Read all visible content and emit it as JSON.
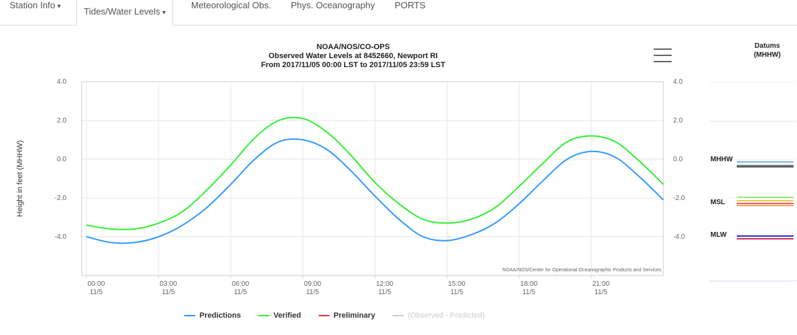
{
  "tabs": [
    {
      "label": "Station Info",
      "caret": true
    },
    {
      "label": "Tides/Water Levels",
      "caret": true,
      "active": true
    },
    {
      "label": "Meteorological Obs.",
      "caret": false
    },
    {
      "label": "Phys. Oceanography",
      "caret": false
    },
    {
      "label": "PORTS",
      "caret": false
    }
  ],
  "menu": {
    "icon": "hamburger-menu-icon"
  },
  "datums": {
    "title_line1": "Datums",
    "title_line2": "(MHHW)",
    "MHHW": {
      "label": "MHHW",
      "colors": [
        "#7cb5ec",
        "#888888",
        "#555555"
      ]
    },
    "MSL": {
      "label": "MSL",
      "colors": [
        "#90ed7d",
        "#f7c744",
        "#f45b5b",
        "#f7a35c"
      ]
    },
    "MLW": {
      "label": "MLW",
      "colors": [
        "#3333cc",
        "#cc3366"
      ]
    }
  },
  "chart_data": {
    "type": "line",
    "title_lines": [
      "NOAA/NOS/CO-OPS",
      "Observed Water Levels at 8452660, Newport RI",
      "From 2017/11/05 00:00 LST to 2017/11/05 23:59 LST"
    ],
    "ylabel": "Height in feet (MHHW)",
    "ylim": [
      -6.0,
      4.0
    ],
    "ytick_labels": [
      "4.0",
      "2.0",
      "0.0",
      "-2.0",
      "-4.0"
    ],
    "yticks": [
      4.0,
      2.0,
      0.0,
      -2.0,
      -4.0
    ],
    "xlim": [
      -0.2,
      24.0
    ],
    "xticks": [
      0,
      3,
      6,
      9,
      12,
      15,
      18,
      21
    ],
    "xtick_labels": [
      [
        "00:00",
        "11/5"
      ],
      [
        "03:00",
        "11/5"
      ],
      [
        "06:00",
        "11/5"
      ],
      [
        "09:00",
        "11/5"
      ],
      [
        "12:00",
        "11/5"
      ],
      [
        "15:00",
        "11/5"
      ],
      [
        "18:00",
        "11/5"
      ],
      [
        "21:00",
        "11/5"
      ]
    ],
    "credits": "NOAA/NOS/Center for Operational Oceanographic Products and Services",
    "grid": true,
    "legend_position": "bottom",
    "series": [
      {
        "name": "Predictions",
        "color": "#3399ff",
        "x": [
          0,
          1,
          2,
          3,
          4,
          5,
          6,
          7,
          8,
          9,
          10,
          11,
          12,
          13,
          14,
          15,
          16,
          17,
          18,
          19,
          20,
          21,
          22,
          23,
          24
        ],
        "y": [
          -4.0,
          -4.3,
          -4.3,
          -4.0,
          -3.4,
          -2.5,
          -1.3,
          0.0,
          0.9,
          1.0,
          0.5,
          -0.6,
          -1.9,
          -3.1,
          -4.0,
          -4.2,
          -3.9,
          -3.3,
          -2.3,
          -1.1,
          0.0,
          0.4,
          0.1,
          -0.9,
          -2.1
        ]
      },
      {
        "name": "Verified",
        "color": "#33ee33",
        "x": [
          0,
          1,
          2,
          3,
          4,
          5,
          6,
          7,
          8,
          9,
          10,
          11,
          12,
          13,
          14,
          15,
          16,
          17,
          18,
          19,
          20,
          21,
          22,
          23,
          24
        ],
        "y": [
          -3.4,
          -3.6,
          -3.6,
          -3.3,
          -2.7,
          -1.6,
          -0.3,
          1.1,
          2.0,
          2.1,
          1.4,
          0.2,
          -1.2,
          -2.3,
          -3.1,
          -3.3,
          -3.1,
          -2.5,
          -1.4,
          -0.2,
          0.9,
          1.2,
          0.9,
          -0.1,
          -1.3
        ]
      },
      {
        "name": "Preliminary",
        "color": "#ff3333",
        "x": [],
        "y": []
      },
      {
        "name": "(Observed - Predicted)",
        "color": "#cccccc",
        "x": [],
        "y": []
      }
    ]
  }
}
